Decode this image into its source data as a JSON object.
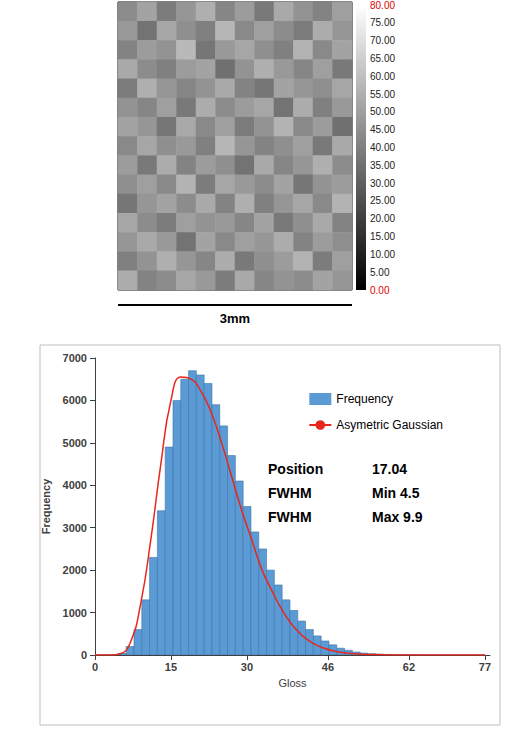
{
  "chart_data": [
    {
      "type": "heatmap",
      "cells": [
        [
          44,
          51,
          39,
          47,
          55,
          42,
          49,
          38,
          53,
          46,
          41,
          50
        ],
        [
          48,
          36,
          52,
          45,
          40,
          57,
          43,
          50,
          44,
          39,
          54,
          47
        ],
        [
          41,
          49,
          46,
          58,
          37,
          48,
          52,
          45,
          40,
          56,
          43,
          51
        ],
        [
          53,
          44,
          40,
          49,
          51,
          35,
          46,
          55,
          48,
          42,
          50,
          38
        ],
        [
          39,
          55,
          47,
          42,
          46,
          53,
          41,
          37,
          51,
          47,
          45,
          52
        ],
        [
          46,
          42,
          50,
          38,
          54,
          44,
          49,
          52,
          36,
          54,
          40,
          48
        ],
        [
          51,
          47,
          37,
          53,
          43,
          50,
          39,
          46,
          56,
          43,
          49,
          35
        ],
        [
          43,
          52,
          45,
          48,
          40,
          57,
          47,
          41,
          45,
          50,
          38,
          53
        ],
        [
          49,
          38,
          54,
          41,
          49,
          45,
          36,
          53,
          42,
          47,
          55,
          44
        ],
        [
          45,
          50,
          43,
          56,
          39,
          52,
          48,
          44,
          51,
          37,
          46,
          49
        ],
        [
          37,
          47,
          51,
          44,
          53,
          41,
          55,
          40,
          47,
          52,
          43,
          56
        ],
        [
          52,
          44,
          39,
          50,
          46,
          48,
          42,
          51,
          38,
          45,
          53,
          41
        ],
        [
          47,
          53,
          48,
          36,
          51,
          43,
          50,
          47,
          54,
          41,
          49,
          45
        ],
        [
          40,
          46,
          55,
          47,
          42,
          54,
          38,
          45,
          49,
          56,
          39,
          50
        ],
        [
          54,
          41,
          44,
          52,
          48,
          39,
          53,
          42,
          46,
          44,
          51,
          47
        ]
      ],
      "colorbar": {
        "range": [
          0,
          80
        ],
        "colors": [
          "#000000",
          "#ffffff"
        ],
        "ticks": [
          {
            "value": 0,
            "label": "0.00"
          },
          {
            "value": 5,
            "label": "5.00"
          },
          {
            "value": 10,
            "label": "10.00"
          },
          {
            "value": 15,
            "label": "15.00"
          },
          {
            "value": 20,
            "label": "20.00"
          },
          {
            "value": 25,
            "label": "25.00"
          },
          {
            "value": 30,
            "label": "30.00"
          },
          {
            "value": 35,
            "label": "35.00"
          },
          {
            "value": 40,
            "label": "40.00"
          },
          {
            "value": 45,
            "label": "45.00"
          },
          {
            "value": 50,
            "label": "50.00"
          },
          {
            "value": 55,
            "label": "55.00"
          },
          {
            "value": 60,
            "label": "60.00"
          },
          {
            "value": 65,
            "label": "65.00"
          },
          {
            "value": 70,
            "label": "70.00"
          },
          {
            "value": 75,
            "label": "75.00"
          },
          {
            "value": 80,
            "label": "80.00"
          }
        ]
      },
      "scale_bar": "3mm"
    },
    {
      "type": "histogram",
      "xlabel": "Gloss",
      "ylabel": "Frequency",
      "xlim": [
        0,
        78
      ],
      "xticks": [
        0,
        15,
        30,
        46,
        62,
        77
      ],
      "ylim": [
        0,
        7000
      ],
      "yticks": [
        0,
        1000,
        2000,
        3000,
        4000,
        5000,
        6000,
        7000
      ],
      "grid": false,
      "legend": "upper right",
      "series": [
        {
          "name": "Frequency",
          "type": "bar",
          "color": "#5b9bd5",
          "bins": [
            0,
            1.54,
            3.08,
            4.62,
            6.16,
            7.7,
            9.24,
            10.78,
            12.32,
            13.86,
            15.4,
            16.94,
            18.48,
            20.02,
            21.56,
            23.1,
            24.64,
            26.18,
            27.72,
            29.26,
            30.8,
            32.34,
            33.88,
            35.42,
            36.96,
            38.5,
            40.04,
            41.58,
            43.12,
            44.66,
            46.2,
            47.74,
            49.28,
            50.82,
            52.36,
            53.9,
            55.44,
            56.98,
            58.52,
            60.06,
            61.6,
            63.14,
            64.68,
            66.22,
            67.76,
            69.3,
            70.84,
            72.38,
            73.92,
            75.46,
            77
          ],
          "values": [
            0,
            0,
            5,
            40,
            200,
            600,
            1300,
            2300,
            3400,
            4900,
            6000,
            6500,
            6700,
            6600,
            6400,
            5900,
            5400,
            4700,
            4100,
            3500,
            2900,
            2500,
            2000,
            1650,
            1300,
            1050,
            800,
            600,
            450,
            330,
            240,
            160,
            110,
            70,
            45,
            30,
            20,
            12,
            8,
            5,
            3,
            2,
            1,
            1,
            0,
            0,
            0,
            0,
            0,
            0
          ]
        },
        {
          "name": "Asymetric Gaussian",
          "type": "line",
          "color": "#e8261c",
          "x": [
            0,
            3,
            5,
            7,
            9,
            11,
            13,
            15,
            17,
            19,
            21,
            23,
            25,
            27,
            29,
            31,
            33,
            35,
            37,
            39,
            41,
            43,
            45,
            47,
            50,
            55,
            60,
            70,
            77
          ],
          "values": [
            0,
            0,
            30,
            300,
            1200,
            2700,
            4500,
            6000,
            6550,
            6500,
            6200,
            5700,
            5000,
            4200,
            3400,
            2700,
            2000,
            1500,
            1050,
            700,
            450,
            280,
            170,
            100,
            40,
            10,
            2,
            0,
            0
          ]
        }
      ],
      "annotations": [
        {
          "label": "Position",
          "text": "17.04"
        },
        {
          "label": "FWHM",
          "text": "Min 4.5"
        },
        {
          "label": "FWHM",
          "text": "Max 9.9"
        }
      ]
    }
  ]
}
